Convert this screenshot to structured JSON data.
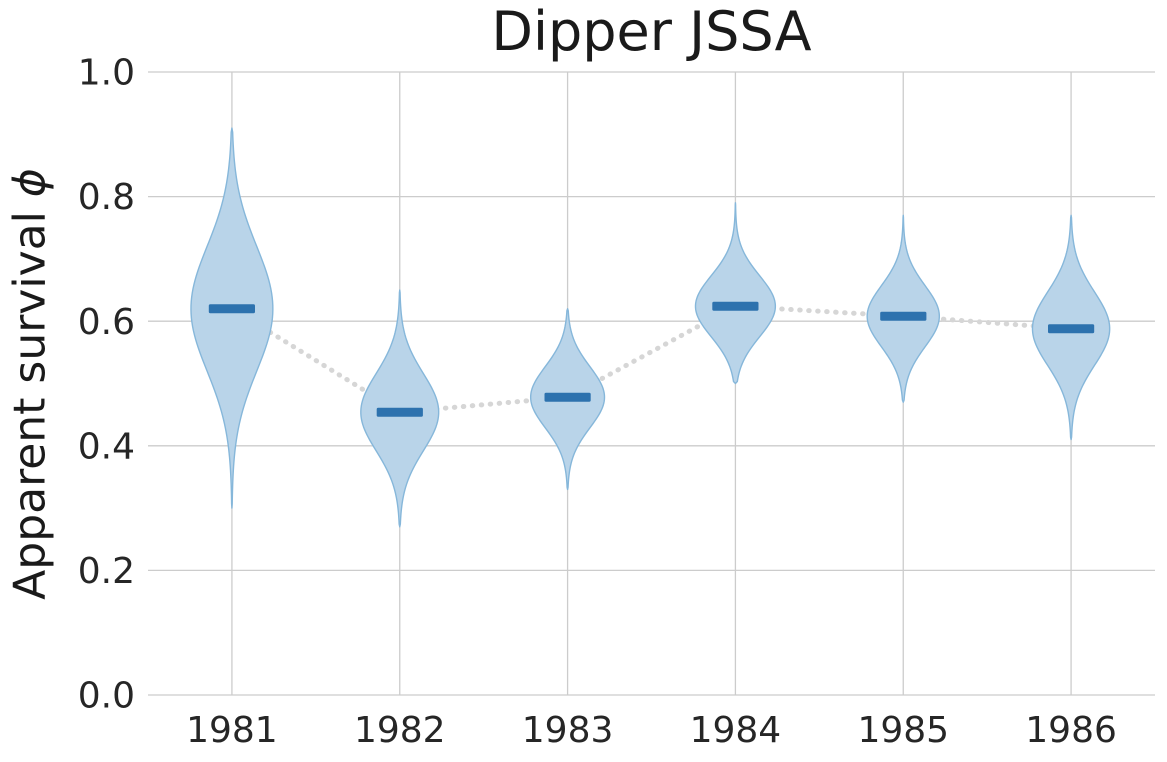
{
  "chart_data": {
    "type": "violin",
    "title": "Dipper JSSA",
    "ylabel": "Apparent survival ϕ",
    "ylabel_text": "Apparent survival ",
    "ylabel_symbol": "ϕ",
    "xlabel": "",
    "categories": [
      "1981",
      "1982",
      "1983",
      "1984",
      "1985",
      "1986"
    ],
    "ylim": [
      0.0,
      1.0
    ],
    "yticks": [
      0.0,
      0.2,
      0.4,
      0.6,
      0.8,
      1.0
    ],
    "grid": true,
    "legend": "none",
    "violins": [
      {
        "label": "1981",
        "median": 0.62,
        "sd": 0.1,
        "lo": 0.3,
        "hi": 0.91,
        "max_halfwidth": 0.244
      },
      {
        "label": "1982",
        "median": 0.454,
        "sd": 0.062,
        "lo": 0.27,
        "hi": 0.65,
        "max_halfwidth": 0.232
      },
      {
        "label": "1983",
        "median": 0.478,
        "sd": 0.049,
        "lo": 0.33,
        "hi": 0.62,
        "max_halfwidth": 0.22
      },
      {
        "label": "1984",
        "median": 0.624,
        "sd": 0.049,
        "lo": 0.5,
        "hi": 0.79,
        "max_halfwidth": 0.238
      },
      {
        "label": "1985",
        "median": 0.608,
        "sd": 0.049,
        "lo": 0.47,
        "hi": 0.77,
        "max_halfwidth": 0.215
      },
      {
        "label": "1986",
        "median": 0.588,
        "sd": 0.059,
        "lo": 0.41,
        "hi": 0.77,
        "max_halfwidth": 0.23
      }
    ],
    "connector": {
      "style": "dotted",
      "connects": "medians"
    },
    "colors": {
      "violin_fill": "#b9d4e9",
      "violin_edge": "#86b7da",
      "median": "#2d72ae",
      "grid": "#cccccc",
      "text": "#262626",
      "connector": "#d6d6d6",
      "background": "#ffffff"
    },
    "style": {
      "median_bar_width_frac": 0.275,
      "median_bar_height": 9
    }
  }
}
